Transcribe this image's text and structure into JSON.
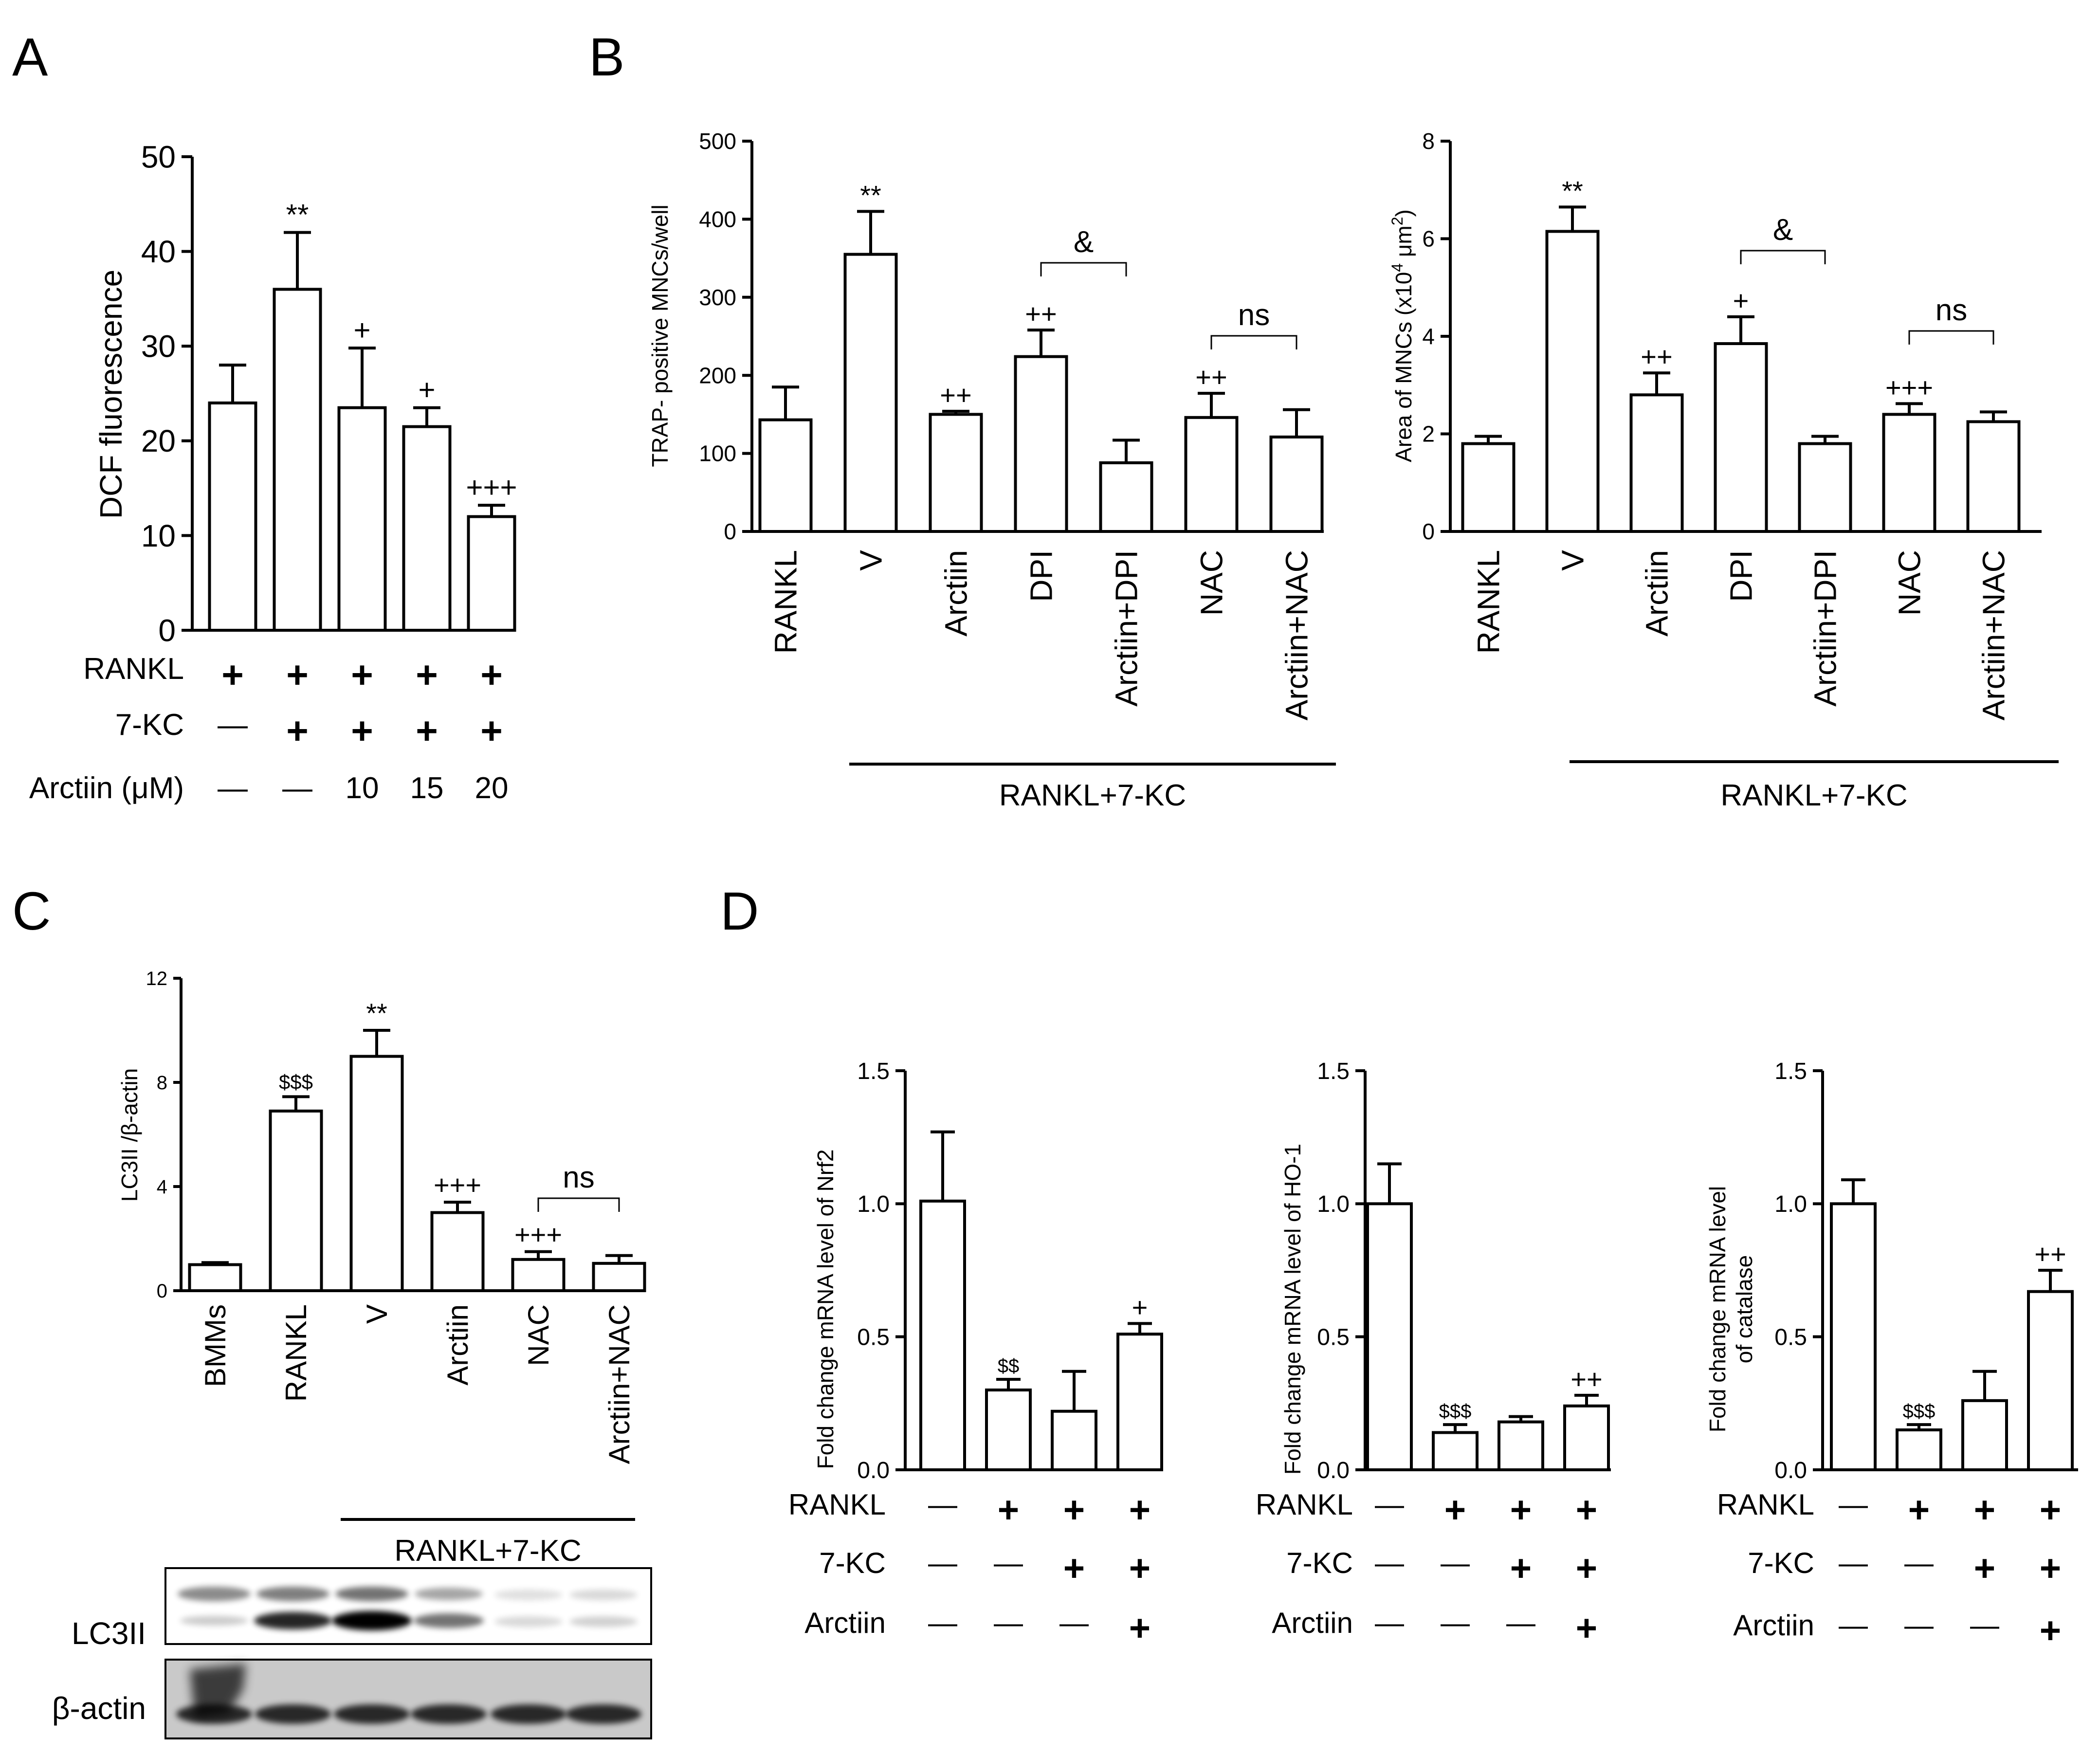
{
  "panels": {
    "a": "A",
    "b": "B",
    "c": "C",
    "d": "D"
  },
  "chart_data": [
    {
      "id": "A",
      "type": "bar",
      "ylabel": "DCF fluorescence",
      "ylim": [
        0,
        50
      ],
      "yticks": [
        0,
        10,
        20,
        30,
        40,
        50
      ],
      "values": [
        24,
        36,
        23.5,
        21.5,
        12
      ],
      "errors": [
        4,
        6,
        6.3,
        2,
        1.2
      ],
      "annotations": [
        "",
        "**",
        "+",
        "+",
        "+++"
      ],
      "conditions": [
        {
          "label": "RANKL",
          "values": [
            "+",
            "+",
            "+",
            "+",
            "+"
          ]
        },
        {
          "label": "7-KC",
          "values": [
            "—",
            "+",
            "+",
            "+",
            "+"
          ]
        },
        {
          "label": "Arctiin (μM)",
          "values": [
            "—",
            "—",
            "10",
            "15",
            "20"
          ]
        }
      ]
    },
    {
      "id": "B1",
      "type": "bar",
      "ylabel": "TRAP- positive MNCs/well",
      "ylim": [
        0,
        500
      ],
      "yticks": [
        0,
        100,
        200,
        300,
        400,
        500
      ],
      "categories": [
        "RANKL",
        "V",
        "Arctiin",
        "DPI",
        "Arctiin+DPI",
        "NAC",
        "Arctiin+NAC"
      ],
      "values": [
        143,
        355,
        150,
        224,
        88,
        146,
        121
      ],
      "errors": [
        42,
        55,
        4,
        34,
        29,
        31,
        35
      ],
      "annotations": [
        "",
        "**",
        "++",
        "++",
        "",
        "++",
        ""
      ],
      "brackets": [
        {
          "from": 3,
          "to": 4,
          "label": "&"
        },
        {
          "from": 5,
          "to": 6,
          "label": "ns"
        }
      ],
      "group_label": "RANKL+7-KC"
    },
    {
      "id": "B2",
      "type": "bar",
      "ylabel_prefix": "Area of MNCs (x10",
      "ylabel_exp": "4",
      "ylabel_mid": " μm",
      "ylabel_exp2": "2",
      "ylabel_suffix": ")",
      "ylim": [
        0,
        8
      ],
      "yticks": [
        0,
        2,
        4,
        6,
        8
      ],
      "categories": [
        "RANKL",
        "V",
        "Arctiin",
        "DPI",
        "Arctiin+DPI",
        "NAC",
        "Arctiin+NAC"
      ],
      "values": [
        1.8,
        6.15,
        2.8,
        3.85,
        1.8,
        2.4,
        2.25
      ],
      "errors": [
        0.15,
        0.5,
        0.45,
        0.55,
        0.15,
        0.22,
        0.2
      ],
      "annotations": [
        "",
        "**",
        "++",
        "+",
        "",
        "+++",
        ""
      ],
      "brackets": [
        {
          "from": 3,
          "to": 4,
          "label": "&"
        },
        {
          "from": 5,
          "to": 6,
          "label": "ns"
        }
      ],
      "group_label": "RANKL+7-KC"
    },
    {
      "id": "C",
      "type": "bar",
      "ylabel": "LC3II /β-actin",
      "ylim": [
        0,
        12
      ],
      "yticks": [
        0,
        4,
        8,
        12
      ],
      "categories": [
        "BMMs",
        "RANKL",
        "V",
        "Arctiin",
        "NAC",
        "Arctiin+NAC"
      ],
      "values": [
        1,
        6.9,
        9,
        3,
        1.2,
        1.05
      ],
      "errors": [
        0.08,
        0.55,
        1,
        0.4,
        0.3,
        0.3
      ],
      "annotations": [
        "",
        "$$$",
        "**",
        "+++",
        "+++",
        ""
      ],
      "brackets": [
        {
          "from": 4,
          "to": 5,
          "label": "ns"
        }
      ],
      "group_label": "RANKL+7-KC",
      "blot_labels": [
        "LC3II",
        "β-actin"
      ]
    },
    {
      "id": "D1",
      "type": "bar",
      "ylabel": "Fold change mRNA level of Nrf2",
      "ylim": [
        0,
        1.5
      ],
      "yticks": [
        "0.0",
        "0.5",
        "1.0",
        "1.5"
      ],
      "values": [
        1.01,
        0.3,
        0.22,
        0.51
      ],
      "errors": [
        0.26,
        0.04,
        0.15,
        0.04
      ],
      "annotations": [
        "",
        "$$",
        "",
        "+"
      ],
      "conditions": [
        {
          "label": "RANKL",
          "values": [
            "—",
            "+",
            "+",
            "+"
          ]
        },
        {
          "label": "7-KC",
          "values": [
            "—",
            "—",
            "+",
            "+"
          ]
        },
        {
          "label": "Arctiin",
          "values": [
            "—",
            "—",
            "—",
            "+"
          ]
        }
      ]
    },
    {
      "id": "D2",
      "type": "bar",
      "ylabel": "Fold change mRNA level of HO-1",
      "ylim": [
        0,
        1.5
      ],
      "yticks": [
        "0.0",
        "0.5",
        "1.0",
        "1.5"
      ],
      "values": [
        1.0,
        0.14,
        0.18,
        0.24
      ],
      "errors": [
        0.15,
        0.03,
        0.02,
        0.04
      ],
      "annotations": [
        "",
        "$$$",
        "",
        "++"
      ],
      "conditions": [
        {
          "label": "RANKL",
          "values": [
            "—",
            "+",
            "+",
            "+"
          ]
        },
        {
          "label": "7-KC",
          "values": [
            "—",
            "—",
            "+",
            "+"
          ]
        },
        {
          "label": "Arctiin",
          "values": [
            "—",
            "—",
            "—",
            "+"
          ]
        }
      ]
    },
    {
      "id": "D3",
      "type": "bar",
      "ylabel_line1": "Fold change mRNA level",
      "ylabel_line2": "of catalase",
      "ylim": [
        0,
        1.5
      ],
      "yticks": [
        "0.0",
        "0.5",
        "1.0",
        "1.5"
      ],
      "values": [
        1.0,
        0.15,
        0.26,
        0.67
      ],
      "errors": [
        0.09,
        0.02,
        0.11,
        0.08
      ],
      "annotations": [
        "",
        "$$$",
        "",
        "++"
      ],
      "conditions": [
        {
          "label": "RANKL",
          "values": [
            "—",
            "+",
            "+",
            "+"
          ]
        },
        {
          "label": "7-KC",
          "values": [
            "—",
            "—",
            "+",
            "+"
          ]
        },
        {
          "label": "Arctiin",
          "values": [
            "—",
            "—",
            "—",
            "+"
          ]
        }
      ]
    }
  ]
}
